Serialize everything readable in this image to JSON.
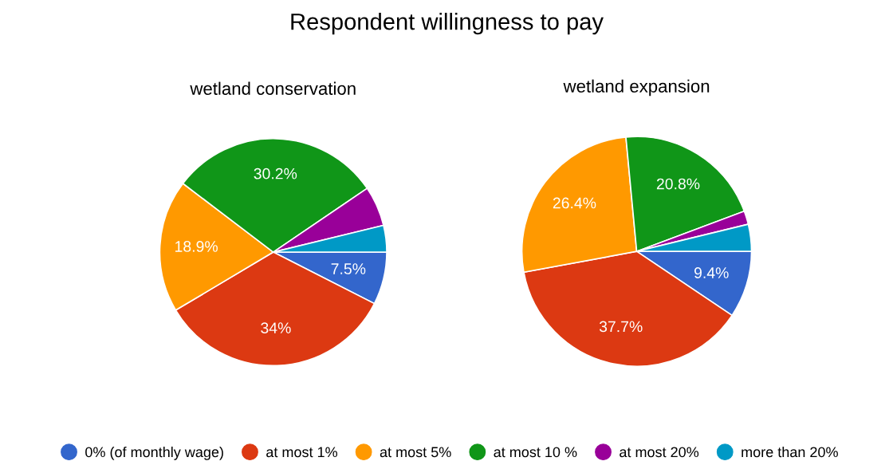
{
  "chart_data": [
    {
      "type": "pie",
      "title": "wetland conservation",
      "annotations": [
        "Respondent willingness to pay"
      ],
      "categories": [
        "0% (of monthly wage)",
        "at most 1%",
        "at most 5%",
        "at most 10 %",
        "at most 20%",
        "more than 20%"
      ],
      "values": [
        7.5,
        34,
        18.9,
        30.2,
        5.7,
        3.8
      ],
      "value_labels": [
        "7.5%",
        "34%",
        "18.9%",
        "30.2%",
        null,
        null
      ],
      "colors": [
        "#3366cc",
        "#dc3912",
        "#ff9900",
        "#109618",
        "#990099",
        "#0099c6"
      ],
      "legend": "bottom"
    },
    {
      "type": "pie",
      "title": "wetland expansion",
      "values": [
        9.4,
        37.7,
        26.4,
        20.8,
        1.9,
        3.8
      ],
      "value_labels": [
        "9.4%",
        "37.7%",
        "26.4%",
        "20.8%",
        null,
        null
      ],
      "colors": [
        "#3366cc",
        "#dc3912",
        "#ff9900",
        "#109618",
        "#990099",
        "#0099c6"
      ]
    }
  ]
}
